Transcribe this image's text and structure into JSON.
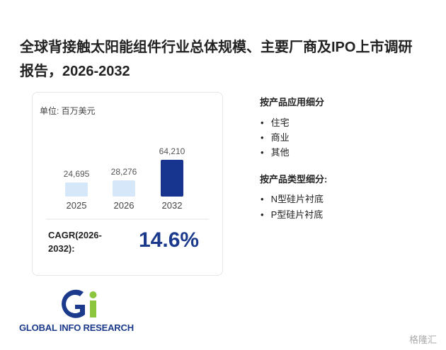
{
  "header": {
    "title": "全球背接触太阳能组件行业总体规模、主要厂商及IPO上市调研报告，2026-2032"
  },
  "chart_data": {
    "type": "bar",
    "unit": "单位: 百万美元",
    "categories": [
      "2025",
      "2026",
      "2032"
    ],
    "values": [
      24695,
      28276,
      64210
    ],
    "value_labels": [
      "24,695",
      "28,276",
      "64,210"
    ],
    "colors": [
      "#d5e7f8",
      "#d5e7f8",
      "#17358f"
    ],
    "cagr_label": "CAGR(2026-2032):",
    "cagr_value": "14.6%"
  },
  "segments": [
    {
      "title": "按产品应用细分",
      "items": [
        "住宅",
        "商业",
        "其他"
      ]
    },
    {
      "title": "按产品类型细分:",
      "items": [
        "N型硅片衬底",
        "P型硅片衬底"
      ]
    }
  ],
  "logo": "GLOBAL INFO RESEARCH",
  "watermark": "格隆汇"
}
